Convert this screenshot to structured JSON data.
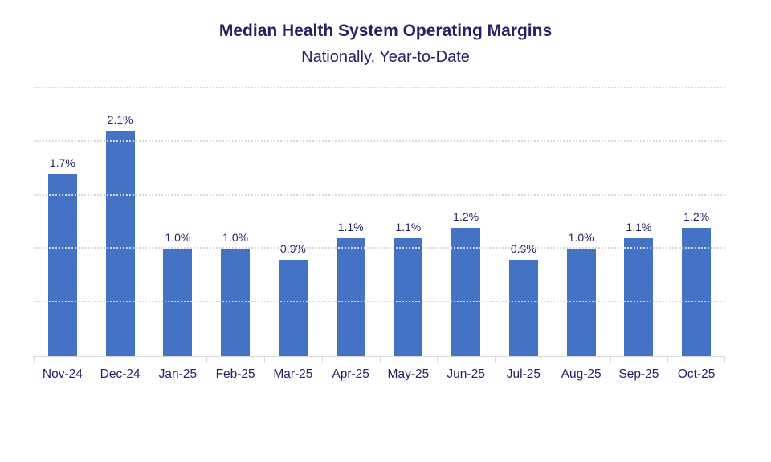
{
  "chart_data": {
    "type": "bar",
    "title": "Median Health System Operating Margins",
    "subtitle": "Nationally, Year-to-Date",
    "categories": [
      "Nov-24",
      "Dec-24",
      "Jan-25",
      "Feb-25",
      "Mar-25",
      "Apr-25",
      "May-25",
      "Jun-25",
      "Jul-25",
      "Aug-25",
      "Sep-25",
      "Oct-25"
    ],
    "values": [
      1.7,
      2.1,
      1.0,
      1.0,
      0.9,
      1.1,
      1.1,
      1.2,
      0.9,
      1.0,
      1.1,
      1.2
    ],
    "data_labels": [
      "1.7%",
      "2.1%",
      "1.0%",
      "1.0%",
      "0.9%",
      "1.1%",
      "1.1%",
      "1.2%",
      "0.9%",
      "1.0%",
      "1.1%",
      "1.2%"
    ],
    "xlabel": "",
    "ylabel": "",
    "ylim": [
      0,
      2.5
    ],
    "gridline_step": 0.5,
    "grid": "horizontal-dotted",
    "legend_position": "none",
    "y_axis_labels_visible": false,
    "colors": {
      "bar": "#4472c4",
      "text": "#262262",
      "gridline": "#d9d9d9",
      "axis": "#d9d9d9",
      "background": "#ffffff"
    }
  }
}
